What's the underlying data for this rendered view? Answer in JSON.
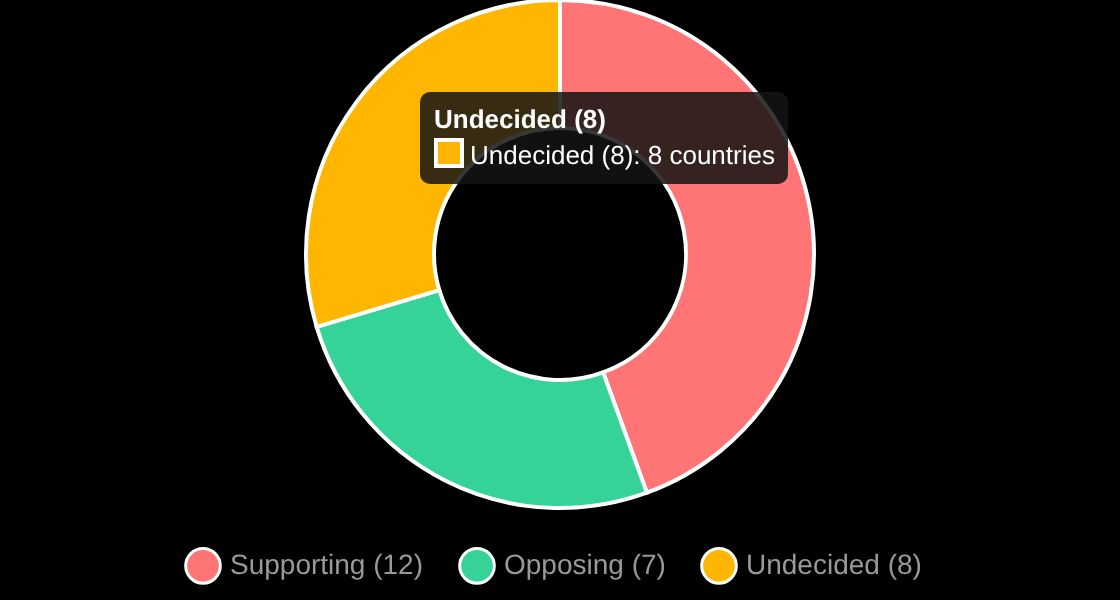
{
  "chart_data": {
    "type": "donut",
    "categories": [
      "Supporting (12)",
      "Opposing (7)",
      "Undecided (8)"
    ],
    "values": [
      12,
      7,
      8
    ],
    "colors": [
      "#ff7474",
      "#36d399",
      "#ffb600"
    ],
    "legend": "bottom",
    "annotations": [
      "Undecided (8)",
      "Undecided (8): 8 countries"
    ]
  }
}
